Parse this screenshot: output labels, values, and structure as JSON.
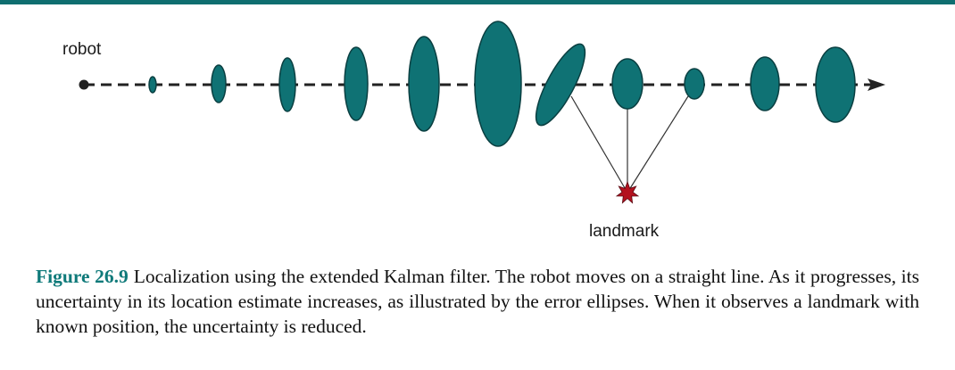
{
  "colors": {
    "accent": "#0f6e70",
    "ellipse_fill": "#0f7274",
    "ellipse_stroke": "#0a3f41",
    "landmark": "#b3121f",
    "caption_number": "#0f7a7a",
    "line": "#222222"
  },
  "diagram": {
    "robot_label": "robot",
    "landmark_label": "landmark"
  },
  "caption": {
    "number": "Figure 26.9",
    "text": "Localization using the extended Kalman filter. The robot moves on a straight line. As it progresses, its uncertainty in its location estimate increases, as illustrated by the error ellipses. When it observes a landmark with known position, the uncertainty is reduced."
  }
}
